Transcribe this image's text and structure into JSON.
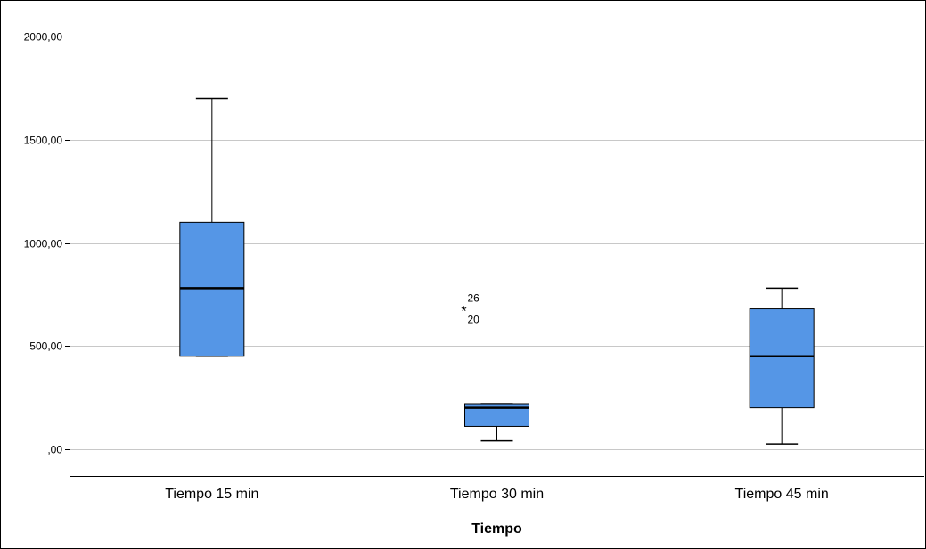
{
  "chart_data": {
    "type": "boxplot",
    "title": "",
    "xlabel": "Tiempo",
    "ylabel": "",
    "ylim": [
      -130,
      2130
    ],
    "y_ticks": [
      0,
      500,
      1000,
      1500,
      2000
    ],
    "y_tick_labels": [
      ",00",
      "500,00",
      "1000,00",
      "1500,00",
      "2000,00"
    ],
    "grid": true,
    "categories": [
      "Tiempo 15 min",
      "Tiempo 30 min",
      "Tiempo 45 min"
    ],
    "boxes": [
      {
        "category": "Tiempo 15 min",
        "whisker_low": 450,
        "q1": 450,
        "median": 780,
        "q3": 1100,
        "whisker_high": 1700,
        "outliers": []
      },
      {
        "category": "Tiempo 30 min",
        "whisker_low": 40,
        "q1": 110,
        "median": 200,
        "q3": 220,
        "whisker_high": 220,
        "outliers": [
          {
            "value": 680,
            "labels": [
              "26",
              "20"
            ],
            "marker": "*"
          }
        ]
      },
      {
        "category": "Tiempo 45 min",
        "whisker_low": 25,
        "q1": 200,
        "median": 450,
        "q3": 680,
        "whisker_high": 780,
        "outliers": []
      }
    ],
    "colors": {
      "box_fill": "#5596E6",
      "box_stroke": "#000000",
      "grid": "#C8C8C8",
      "axis": "#000000"
    }
  }
}
